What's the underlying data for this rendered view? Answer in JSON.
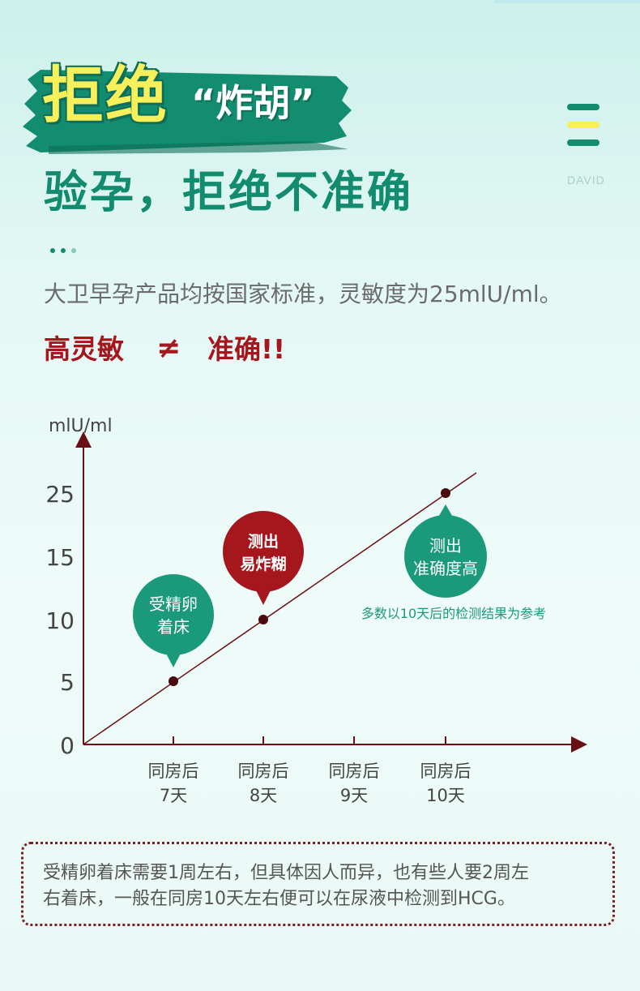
{
  "header": {
    "headline_main": "拒绝",
    "headline_sub": "“炸胡”",
    "subtitle": "验孕，拒绝不准确",
    "brand": "DAVID"
  },
  "intro": {
    "description": "大卫早孕产品均按国家标准，灵敏度为25mlU/ml。",
    "warning_left": "高灵敏",
    "warning_symbol": "≠",
    "warning_right": "准确!!"
  },
  "colors": {
    "accent_green": "#128b6e",
    "bubble_green": "#1b9a7b",
    "bubble_red": "#a5161d",
    "axis_dark_red": "#6b0f14",
    "headline_yellow": "#f7f05a"
  },
  "chart_data": {
    "type": "line",
    "ylabel": "mlU/ml",
    "y_ticks": [
      "0",
      "5",
      "10",
      "15",
      "25"
    ],
    "categories": [
      "同房后\n7天",
      "同房后\n8天",
      "同房后\n9天",
      "同房后\n10天"
    ],
    "points": [
      {
        "category": "同房后\n7天",
        "value": 5
      },
      {
        "category": "同房后\n8天",
        "value": 10
      },
      {
        "category": "同房后\n10天",
        "value": 25
      }
    ],
    "annotations": [
      {
        "text": [
          "受精卵",
          "着床"
        ],
        "category": "同房后\n7天",
        "style": "green"
      },
      {
        "text": [
          "测出",
          "易炸糊"
        ],
        "category": "同房后\n8天",
        "style": "red"
      },
      {
        "text": [
          "测出",
          "准确度高"
        ],
        "category": "同房后\n10天",
        "style": "green"
      }
    ],
    "footnote": "多数以10天后的检测结果为参考",
    "grid": false
  },
  "note": {
    "line1": "受精卵着床需要1周左右，但具体因人而异，也有些人要2周左",
    "line2": "右着床，一般在同房10天左右便可以在尿液中检测到HCG。"
  }
}
